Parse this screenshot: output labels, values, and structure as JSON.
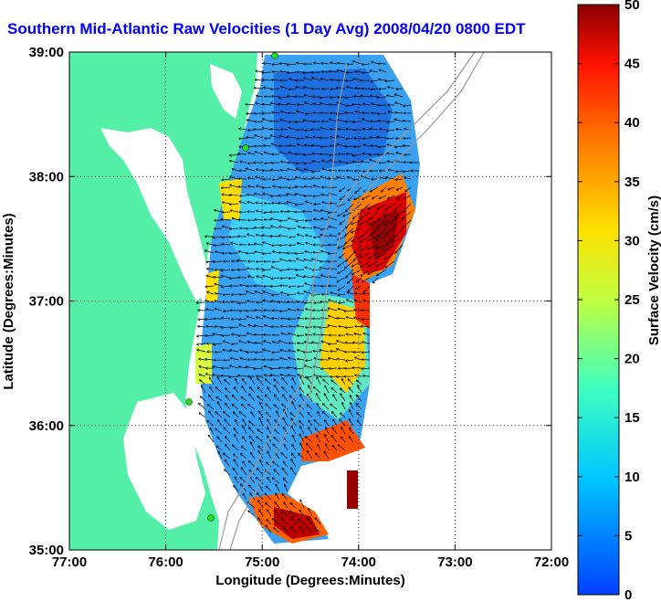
{
  "title": "Southern Mid-Atlantic Raw Velocities (1 Day Avg) 2008/04/20 0800 EDT",
  "x_axis": {
    "label": "Longitude (Degrees:Minutes)",
    "ticks": [
      "77:00",
      "76:00",
      "75:00",
      "74:00",
      "73:00",
      "72:00"
    ]
  },
  "y_axis": {
    "label": "Latitude (Degrees:Minutes)",
    "ticks": [
      "39:00",
      "38:00",
      "37:00",
      "36:00",
      "35:00"
    ]
  },
  "colorbar": {
    "label": "Surface Velocity (cm/s)",
    "ticks": [
      "50",
      "45",
      "40",
      "35",
      "30",
      "25",
      "20",
      "15",
      "10",
      "5",
      "0"
    ],
    "range": [
      0,
      50
    ],
    "colormap": "jet"
  },
  "map": {
    "land_color": "#55f0a8",
    "water_color": "#ffffff",
    "station_color": "#22dd22",
    "bathymetry_color": "#999999",
    "grid": "dotted"
  }
}
